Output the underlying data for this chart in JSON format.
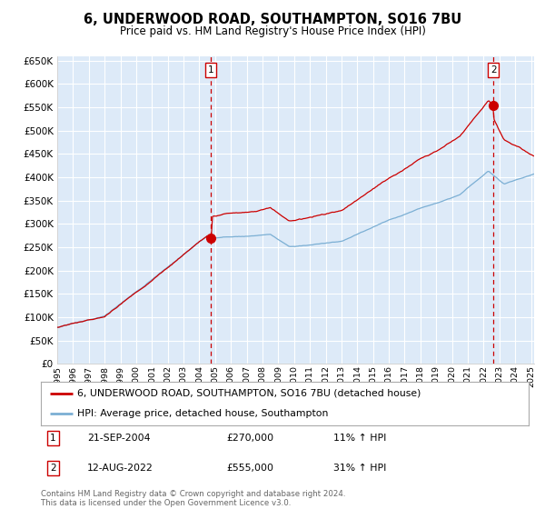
{
  "title": "6, UNDERWOOD ROAD, SOUTHAMPTON, SO16 7BU",
  "subtitle": "Price paid vs. HM Land Registry's House Price Index (HPI)",
  "legend_line1": "6, UNDERWOOD ROAD, SOUTHAMPTON, SO16 7BU (detached house)",
  "legend_line2": "HPI: Average price, detached house, Southampton",
  "annotation1_label": "1",
  "annotation1_date": "21-SEP-2004",
  "annotation1_price": "£270,000",
  "annotation1_hpi": "11% ↑ HPI",
  "annotation1_year": 2004.72,
  "annotation1_value": 270000,
  "annotation2_label": "2",
  "annotation2_date": "12-AUG-2022",
  "annotation2_price": "£555,000",
  "annotation2_hpi": "31% ↑ HPI",
  "annotation2_year": 2022.62,
  "annotation2_value": 555000,
  "ylim_min": 0,
  "ylim_max": 660000,
  "xmin": 1995,
  "xmax": 2025.2,
  "background_color": "#ddeaf8",
  "grid_color": "#ffffff",
  "red_line_color": "#cc0000",
  "blue_line_color": "#7bafd4",
  "footer_text": "Contains HM Land Registry data © Crown copyright and database right 2024.\nThis data is licensed under the Open Government Licence v3.0.",
  "copyright_color": "#666666"
}
